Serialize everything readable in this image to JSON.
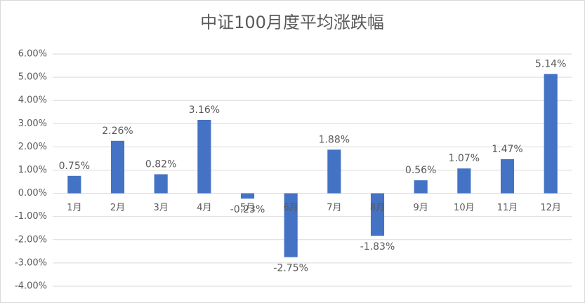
{
  "chart_data": {
    "type": "bar",
    "title": "中证100月度平均涨跌幅",
    "categories": [
      "1月",
      "2月",
      "3月",
      "4月",
      "5月",
      "6月",
      "7月",
      "8月",
      "9月",
      "10月",
      "11月",
      "12月"
    ],
    "values": [
      0.75,
      2.26,
      0.82,
      3.16,
      -0.23,
      -2.75,
      1.88,
      -1.83,
      0.56,
      1.07,
      1.47,
      5.14
    ],
    "value_labels": [
      "0.75%",
      "2.26%",
      "0.82%",
      "3.16%",
      "-0.23%",
      "-2.75%",
      "1.88%",
      "-1.83%",
      "0.56%",
      "1.07%",
      "1.47%",
      "5.14%"
    ],
    "color": "#4472c4",
    "ylim": [
      -4,
      6
    ],
    "yticks": [
      {
        "value": -4,
        "label": "-4.00%"
      },
      {
        "value": -3,
        "label": "-3.00%"
      },
      {
        "value": -2,
        "label": "-2.00%"
      },
      {
        "value": -1,
        "label": "-1.00%"
      },
      {
        "value": 0,
        "label": "0.00%"
      },
      {
        "value": 1,
        "label": "1.00%"
      },
      {
        "value": 2,
        "label": "2.00%"
      },
      {
        "value": 3,
        "label": "3.00%"
      },
      {
        "value": 4,
        "label": "4.00%"
      },
      {
        "value": 5,
        "label": "5.00%"
      },
      {
        "value": 6,
        "label": "6.00%"
      }
    ],
    "grid": true
  }
}
